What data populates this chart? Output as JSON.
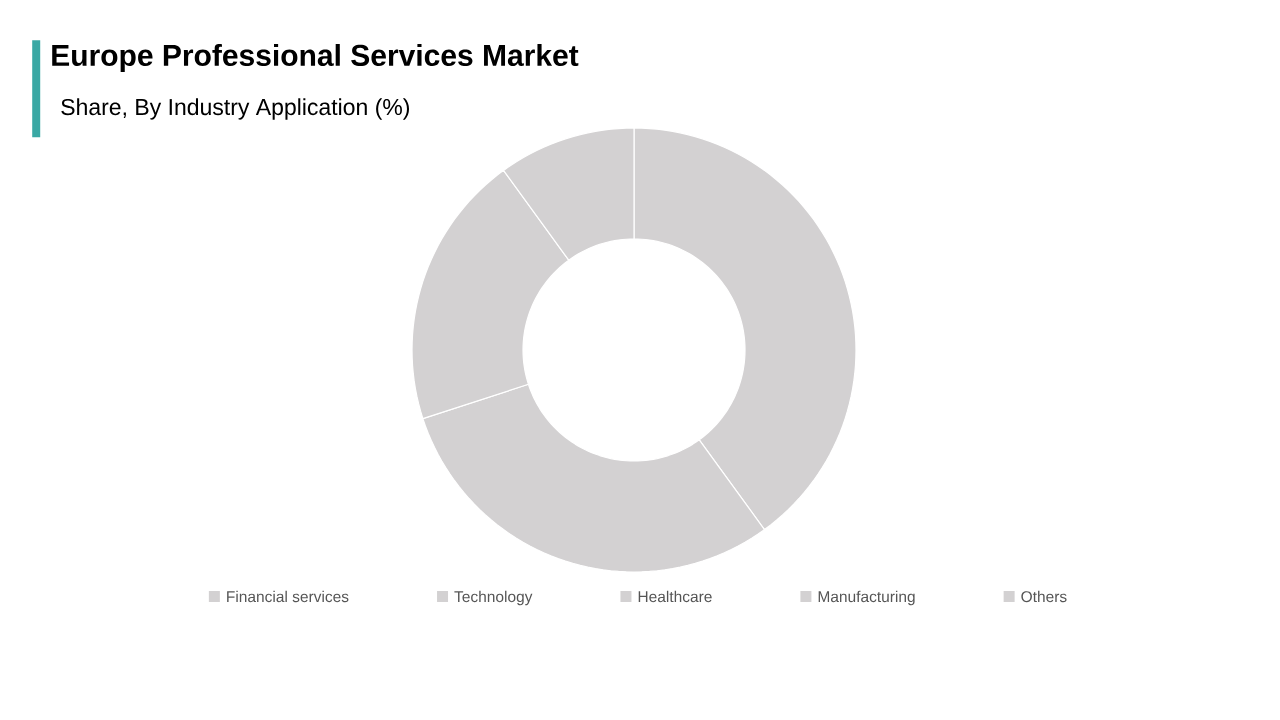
{
  "chart_data": {
    "type": "donut",
    "title": "Europe Professional Services Market",
    "subtitle": "Share, By Industry Application (%)",
    "categories": [
      "Financial services",
      "Technology",
      "Healthcare",
      "Manufacturing",
      "Others"
    ],
    "values": [
      40,
      30,
      20,
      10,
      0
    ],
    "colors": [
      "#d3d1d2",
      "#d3d1d2",
      "#d3d1d2",
      "#d3d1d2",
      "#d3d1d2"
    ],
    "legend": "bottom"
  }
}
